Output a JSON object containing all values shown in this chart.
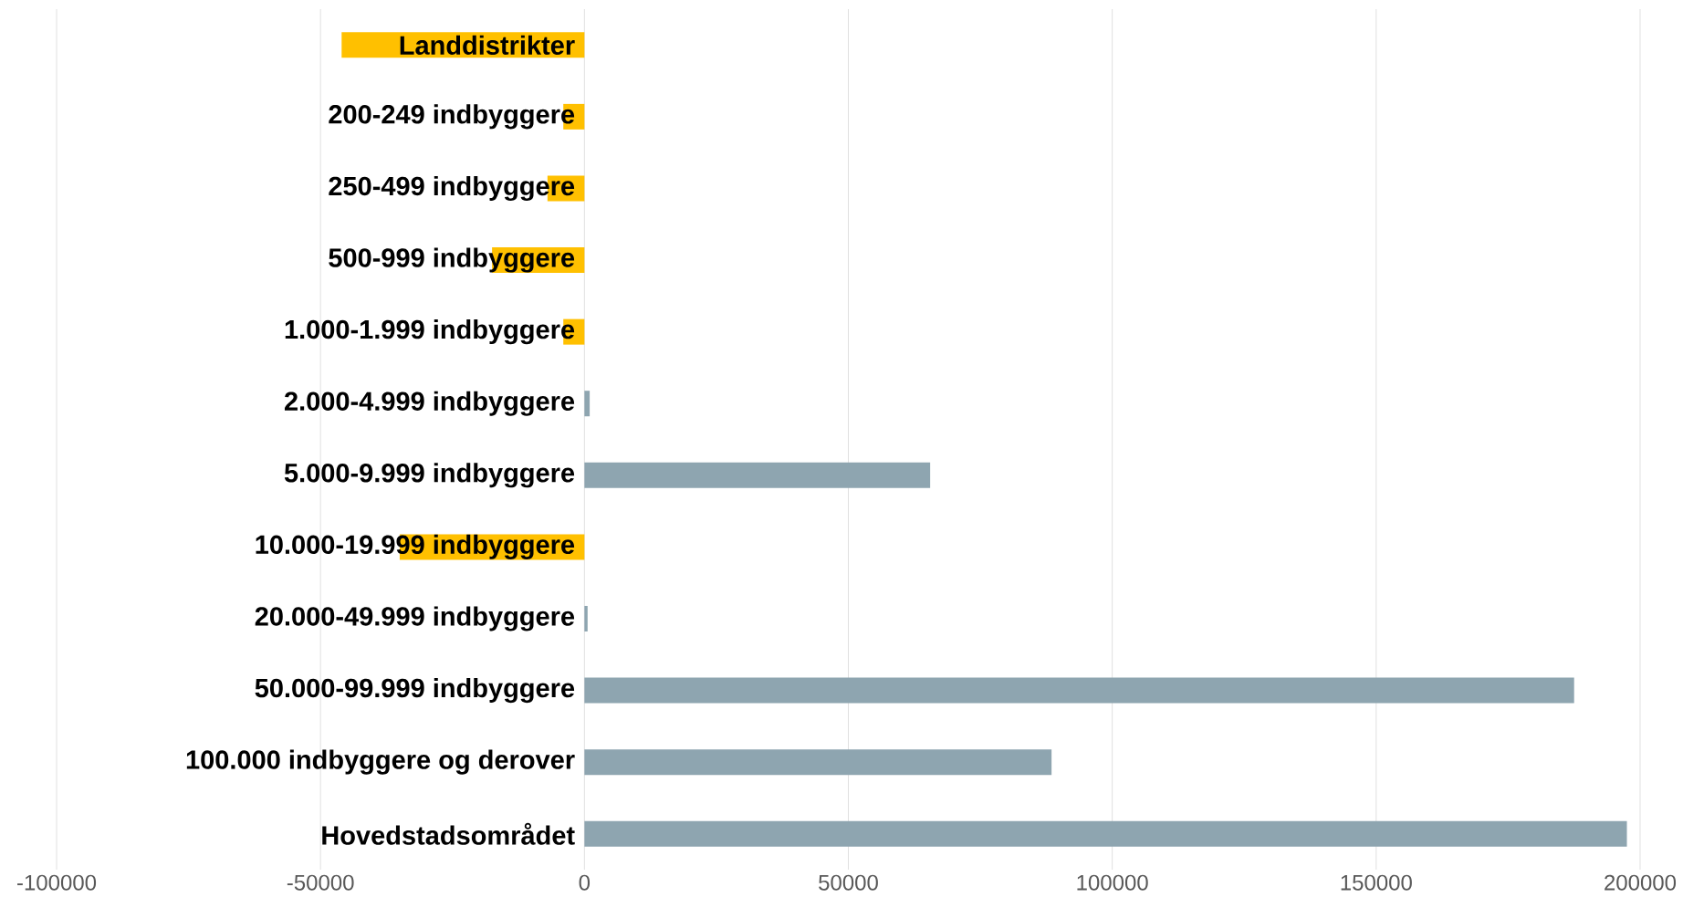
{
  "chart_data": {
    "type": "bar",
    "orientation": "horizontal",
    "categories": [
      "Landdistrikter",
      "200-249 indbyggere",
      "250-499 indbyggere",
      "500-999 indbyggere",
      "1.000-1.999 indbyggere",
      "2.000-4.999 indbyggere",
      "5.000-9.999 indbyggere",
      "10.000-19.999 indbyggere",
      "20.000-49.999 indbyggere",
      "50.000-99.999 indbyggere",
      "100.000 indbyggere og derover",
      "Hovedstadsområdet"
    ],
    "values": [
      -46000,
      -4000,
      -7000,
      -17500,
      -4000,
      1000,
      65500,
      -35000,
      600,
      187500,
      88500,
      197500
    ],
    "colors": [
      "#ffc000",
      "#ffc000",
      "#ffc000",
      "#ffc000",
      "#ffc000",
      "#8ea5b0",
      "#8ea5b0",
      "#ffc000",
      "#8ea5b0",
      "#8ea5b0",
      "#8ea5b0",
      "#8ea5b0"
    ],
    "xlim": [
      -100000,
      200000
    ],
    "xticks": [
      -100000,
      -50000,
      0,
      50000,
      100000,
      150000,
      200000
    ],
    "grid": "x"
  }
}
